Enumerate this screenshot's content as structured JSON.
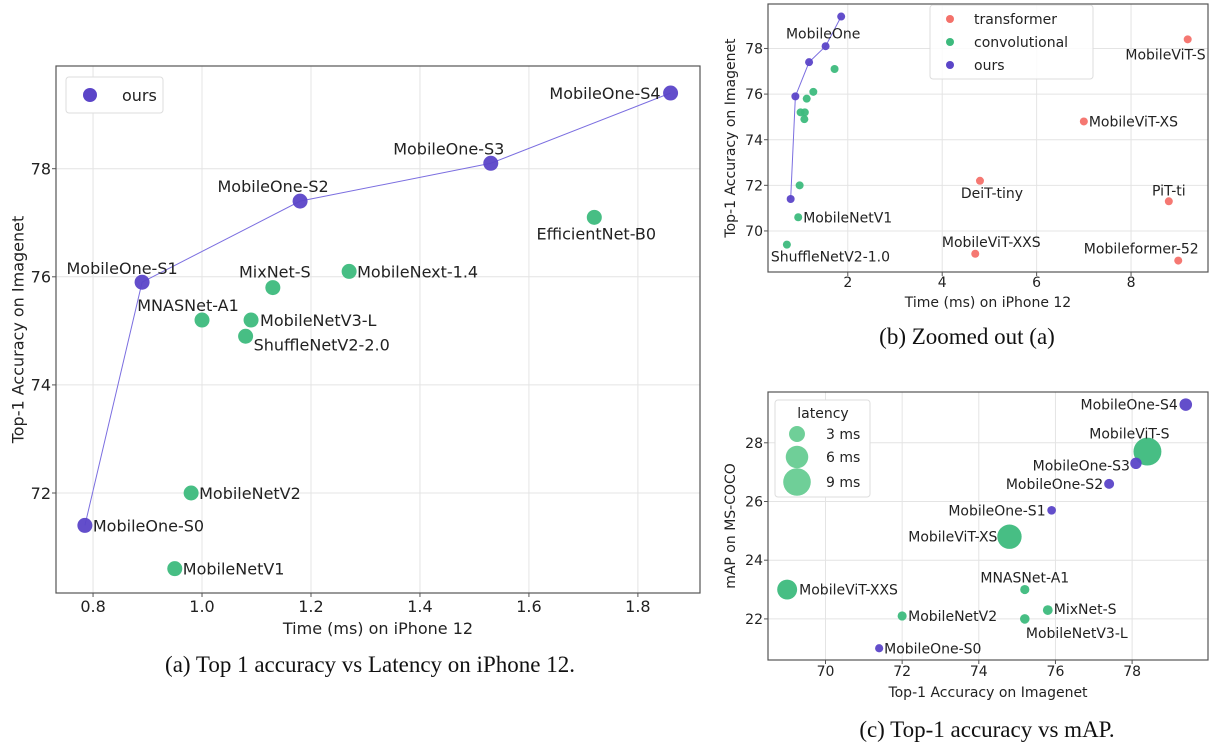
{
  "colors": {
    "ours": "#5b45c8",
    "convolutional": "#3dba7d",
    "transformer": "#f4716a",
    "grid": "#e4e4e4",
    "axis": "#555555"
  },
  "captions": {
    "a": "(a) Top 1 accuracy vs Latency on iPhone 12.",
    "b": "(b) Zoomed out (a)",
    "c": "(c) Top-1 accuracy vs mAP."
  },
  "chart_data": [
    {
      "id": "a",
      "type": "scatter",
      "xlabel": "Time (ms) on iPhone 12",
      "ylabel": "Top-1 Accuracy on Imagenet",
      "xlim": [
        0.732,
        1.914
      ],
      "ylim": [
        70.15,
        79.9
      ],
      "xticks": [
        0.8,
        1.0,
        1.2,
        1.4,
        1.6,
        1.8
      ],
      "xtick_labels": [
        "0.8",
        "1.0",
        "1.2",
        "1.4",
        "1.6",
        "1.8"
      ],
      "yticks": [
        72,
        74,
        76,
        78
      ],
      "ytick_labels": [
        "72",
        "74",
        "76",
        "78"
      ],
      "grid": true,
      "legend": {
        "placement": "top-left",
        "entries": [
          {
            "label": "ours",
            "group": "ours"
          }
        ]
      },
      "line": {
        "group": "ours"
      },
      "points": [
        {
          "name": "MobileOne-S0",
          "group": "ours",
          "x": 0.785,
          "y": 71.4
        },
        {
          "name": "MobileOne-S1",
          "group": "ours",
          "x": 0.89,
          "y": 75.9
        },
        {
          "name": "MobileOne-S2",
          "group": "ours",
          "x": 1.18,
          "y": 77.4
        },
        {
          "name": "MobileOne-S3",
          "group": "ours",
          "x": 1.53,
          "y": 78.1
        },
        {
          "name": "MobileOne-S4",
          "group": "ours",
          "x": 1.86,
          "y": 79.4
        },
        {
          "name": "MobileNetV1",
          "group": "convolutional",
          "x": 0.95,
          "y": 70.6
        },
        {
          "name": "MobileNetV2",
          "group": "convolutional",
          "x": 0.98,
          "y": 72.0
        },
        {
          "name": "MNASNet-A1",
          "group": "convolutional",
          "x": 1.0,
          "y": 75.2
        },
        {
          "name": "MobileNetV3-L",
          "group": "convolutional",
          "x": 1.09,
          "y": 75.2
        },
        {
          "name": "ShuffleNetV2-2.0",
          "group": "convolutional",
          "x": 1.08,
          "y": 74.9
        },
        {
          "name": "MixNet-S",
          "group": "convolutional",
          "x": 1.13,
          "y": 75.8
        },
        {
          "name": "MobileNext-1.4",
          "group": "convolutional",
          "x": 1.27,
          "y": 76.1
        },
        {
          "name": "EfficientNet-B0",
          "group": "convolutional",
          "x": 1.72,
          "y": 77.1
        }
      ]
    },
    {
      "id": "b",
      "type": "scatter",
      "xlabel": "Time (ms) on iPhone 12",
      "ylabel": "Top-1 Accuracy on Imagenet",
      "xlim": [
        0.31,
        9.63
      ],
      "ylim": [
        68.2,
        79.95
      ],
      "xticks": [
        2,
        4,
        6,
        8
      ],
      "xtick_labels": [
        "2",
        "4",
        "6",
        "8"
      ],
      "yticks": [
        70,
        72,
        74,
        76,
        78
      ],
      "ytick_labels": [
        "70",
        "72",
        "74",
        "76",
        "78"
      ],
      "grid": true,
      "legend": {
        "placement": "top-center",
        "entries": [
          {
            "label": "transformer",
            "group": "transformer"
          },
          {
            "label": "convolutional",
            "group": "convolutional"
          },
          {
            "label": "ours",
            "group": "ours"
          }
        ]
      },
      "line": {
        "group": "ours"
      },
      "group_label": {
        "text": "MobileOne",
        "group": "ours"
      },
      "points": [
        {
          "name": "MobileOne-S0",
          "group": "ours",
          "x": 0.79,
          "y": 71.4,
          "show_label": false
        },
        {
          "name": "MobileOne-S1",
          "group": "ours",
          "x": 0.89,
          "y": 75.9,
          "show_label": false
        },
        {
          "name": "MobileOne-S2",
          "group": "ours",
          "x": 1.18,
          "y": 77.4,
          "show_label": false
        },
        {
          "name": "MobileOne-S3",
          "group": "ours",
          "x": 1.53,
          "y": 78.1,
          "show_label": false
        },
        {
          "name": "MobileOne-S4",
          "group": "ours",
          "x": 1.86,
          "y": 79.4,
          "show_label": false
        },
        {
          "name": "MobileNetV1",
          "group": "convolutional",
          "x": 0.95,
          "y": 70.6,
          "show_label": true
        },
        {
          "name": "MobileNetV2",
          "group": "convolutional",
          "x": 0.98,
          "y": 72.0,
          "show_label": false
        },
        {
          "name": "MNASNet-A1",
          "group": "convolutional",
          "x": 1.0,
          "y": 75.2,
          "show_label": false
        },
        {
          "name": "MobileNetV3-L",
          "group": "convolutional",
          "x": 1.09,
          "y": 75.2,
          "show_label": false
        },
        {
          "name": "ShuffleNetV2-2.0",
          "group": "convolutional",
          "x": 1.08,
          "y": 74.9,
          "show_label": false
        },
        {
          "name": "MixNet-S",
          "group": "convolutional",
          "x": 1.13,
          "y": 75.8,
          "show_label": false
        },
        {
          "name": "MobileNext-1.4",
          "group": "convolutional",
          "x": 1.27,
          "y": 76.1,
          "show_label": false
        },
        {
          "name": "EfficientNet-B0",
          "group": "convolutional",
          "x": 1.72,
          "y": 77.1,
          "show_label": false
        },
        {
          "name": "ShuffleNetV2-1.0",
          "group": "convolutional",
          "x": 0.71,
          "y": 69.4,
          "show_label": true
        },
        {
          "name": "MobileViT-S",
          "group": "transformer",
          "x": 9.2,
          "y": 78.4,
          "show_label": true
        },
        {
          "name": "MobileViT-XS",
          "group": "transformer",
          "x": 7.0,
          "y": 74.8,
          "show_label": true
        },
        {
          "name": "DeiT-tiny",
          "group": "transformer",
          "x": 4.8,
          "y": 72.2,
          "show_label": true
        },
        {
          "name": "PiT-ti",
          "group": "transformer",
          "x": 8.8,
          "y": 71.3,
          "show_label": true
        },
        {
          "name": "MobileViT-XXS",
          "group": "transformer",
          "x": 4.7,
          "y": 69.0,
          "show_label": true
        },
        {
          "name": "Mobileformer-52",
          "group": "transformer",
          "x": 9.0,
          "y": 68.7,
          "show_label": true
        }
      ]
    },
    {
      "id": "c",
      "type": "scatter",
      "xlabel": "Top-1 Accuracy on Imagenet",
      "ylabel": "mAP on MS-COCO",
      "xlim": [
        68.5,
        79.98
      ],
      "ylim": [
        20.6,
        29.73
      ],
      "xticks": [
        70,
        72,
        74,
        76,
        78
      ],
      "xtick_labels": [
        "70",
        "72",
        "74",
        "76",
        "78"
      ],
      "yticks": [
        22,
        24,
        26,
        28
      ],
      "ytick_labels": [
        "22",
        "24",
        "26",
        "28"
      ],
      "grid": true,
      "size_encoding": "latency_ms",
      "legend": {
        "placement": "top-left",
        "title": "latency",
        "entries": [
          {
            "label": "3 ms",
            "latency_ms": 3
          },
          {
            "label": "6 ms",
            "latency_ms": 6
          },
          {
            "label": "9 ms",
            "latency_ms": 9
          }
        ]
      },
      "points": [
        {
          "name": "MobileOne-S4",
          "group": "ours",
          "x": 79.4,
          "y": 29.3,
          "latency_ms": 1.86
        },
        {
          "name": "MobileViT-S",
          "group": "convolutional",
          "x": 78.4,
          "y": 27.7,
          "latency_ms": 9.2
        },
        {
          "name": "MobileOne-S3",
          "group": "ours",
          "x": 78.1,
          "y": 27.3,
          "latency_ms": 1.53
        },
        {
          "name": "MobileOne-S2",
          "group": "ours",
          "x": 77.4,
          "y": 26.6,
          "latency_ms": 1.18
        },
        {
          "name": "MobileOne-S1",
          "group": "ours",
          "x": 75.9,
          "y": 25.7,
          "latency_ms": 0.89
        },
        {
          "name": "MobileViT-XS",
          "group": "convolutional",
          "x": 74.8,
          "y": 24.8,
          "latency_ms": 7.0
        },
        {
          "name": "MobileViT-XXS",
          "group": "convolutional",
          "x": 69.0,
          "y": 23.0,
          "latency_ms": 4.7
        },
        {
          "name": "MNASNet-A1",
          "group": "convolutional",
          "x": 75.2,
          "y": 23.0,
          "latency_ms": 1.0
        },
        {
          "name": "MixNet-S",
          "group": "convolutional",
          "x": 75.8,
          "y": 22.3,
          "latency_ms": 1.13
        },
        {
          "name": "MobileNetV3-L",
          "group": "convolutional",
          "x": 75.2,
          "y": 22.0,
          "latency_ms": 1.09
        },
        {
          "name": "MobileNetV2",
          "group": "convolutional",
          "x": 72.0,
          "y": 22.1,
          "latency_ms": 0.98
        },
        {
          "name": "MobileOne-S0",
          "group": "ours",
          "x": 71.4,
          "y": 21.0,
          "latency_ms": 0.785
        }
      ]
    }
  ]
}
